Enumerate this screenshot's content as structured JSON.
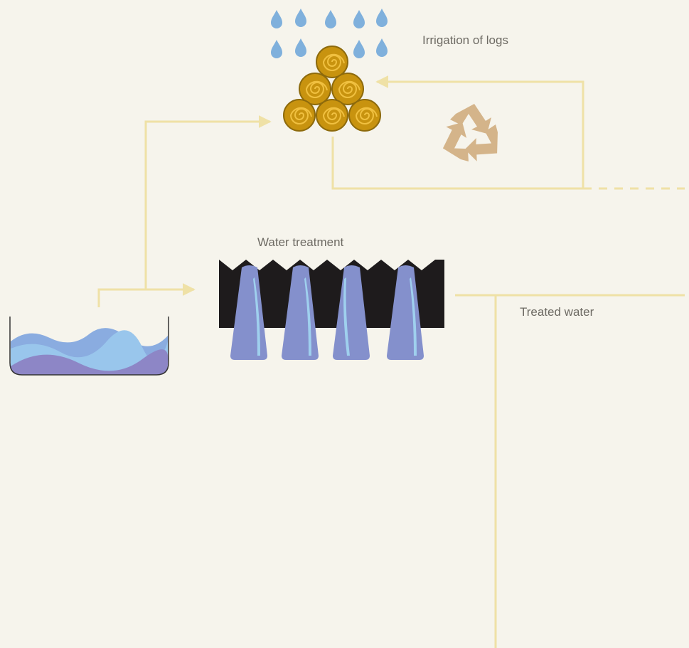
{
  "nodes": [
    {
      "label": "Irrigation of logs"
    },
    {
      "label": "Water treatment"
    },
    {
      "label": "Treated water"
    }
  ]
}
